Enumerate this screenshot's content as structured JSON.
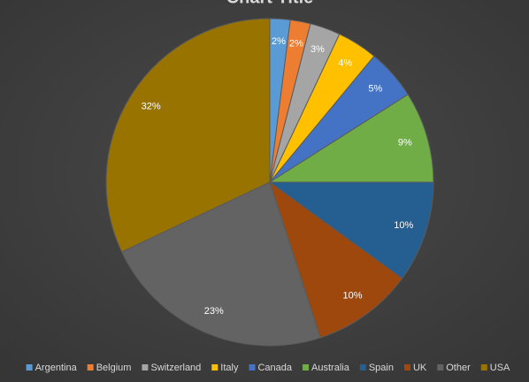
{
  "chart_data": {
    "type": "pie",
    "title": "Chart Title",
    "categories": [
      "Argentina",
      "Belgium",
      "Switzerland",
      "Italy",
      "Canada",
      "Australia",
      "Spain",
      "UK",
      "Other",
      "USA"
    ],
    "values": [
      2,
      2,
      3,
      4,
      5,
      9,
      10,
      10,
      23,
      32
    ],
    "value_labels": [
      "2%",
      "2%",
      "3%",
      "4%",
      "5%",
      "9%",
      "10%",
      "10%",
      "23%",
      "32%"
    ],
    "colors": [
      "#5b9bd5",
      "#ed7d31",
      "#a5a5a5",
      "#ffc000",
      "#4472c4",
      "#70ad47",
      "#255e91",
      "#9e480e",
      "#636363",
      "#997300"
    ],
    "legend": "bottom"
  }
}
